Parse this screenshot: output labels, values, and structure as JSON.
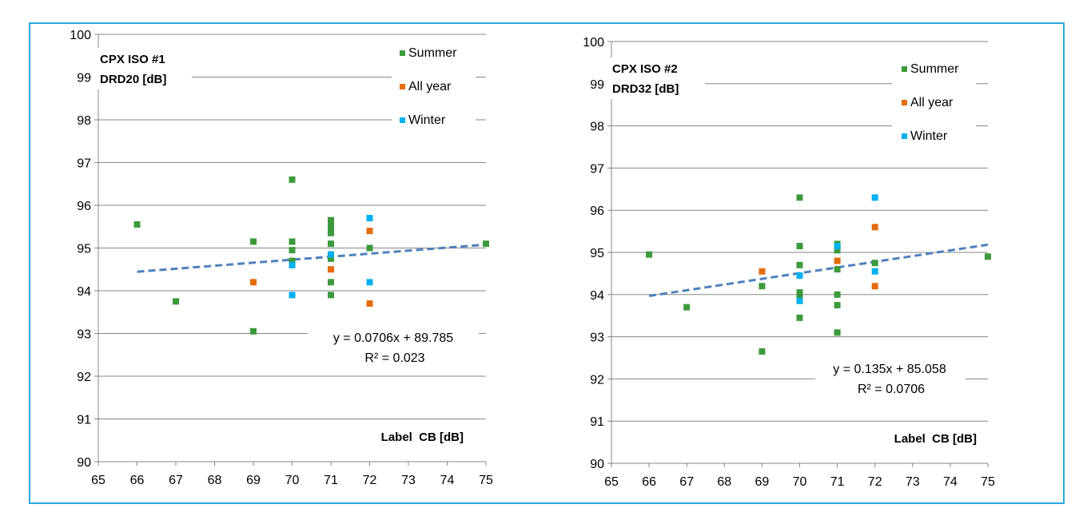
{
  "chart_data": [
    {
      "type": "scatter",
      "title_lines": [
        "CPX ISO #1",
        "DRD20 [dB]"
      ],
      "xlabel": "Label  CB [dB]",
      "ylabel": "",
      "xlim": [
        65,
        75
      ],
      "ylim": [
        90,
        100
      ],
      "xticks": [
        65,
        66,
        67,
        68,
        69,
        70,
        71,
        72,
        73,
        74,
        75
      ],
      "yticks": [
        90,
        91,
        92,
        93,
        94,
        95,
        96,
        97,
        98,
        99,
        100
      ],
      "grid": "horizontal",
      "legend_position": "top-right",
      "series": [
        {
          "name": "Summer",
          "color": "#3c9a3c",
          "points": [
            [
              66,
              95.55
            ],
            [
              67,
              93.75
            ],
            [
              69,
              95.15
            ],
            [
              69,
              93.05
            ],
            [
              70,
              96.6
            ],
            [
              70,
              95.15
            ],
            [
              70,
              94.95
            ],
            [
              70,
              94.7
            ],
            [
              71,
              95.65
            ],
            [
              71,
              95.55
            ],
            [
              71,
              95.45
            ],
            [
              71,
              95.35
            ],
            [
              71,
              95.1
            ],
            [
              71,
              94.75
            ],
            [
              71,
              94.2
            ],
            [
              71,
              93.9
            ],
            [
              72,
              95.0
            ],
            [
              75,
              95.1
            ]
          ]
        },
        {
          "name": "All year",
          "color": "#e46c0a",
          "points": [
            [
              69,
              94.2
            ],
            [
              71,
              94.5
            ],
            [
              72,
              95.4
            ],
            [
              72,
              93.7
            ]
          ]
        },
        {
          "name": "Winter",
          "color": "#00b0f0",
          "points": [
            [
              70,
              94.6
            ],
            [
              70,
              93.9
            ],
            [
              71,
              94.85
            ],
            [
              72,
              95.7
            ],
            [
              72,
              94.2
            ]
          ]
        }
      ],
      "trendline": {
        "slope": 0.0706,
        "intercept": 89.785,
        "x_range": [
          66,
          75
        ],
        "color": "#4f81bd",
        "style": "dashed",
        "equation_label": "y = 0.0706x + 89.785",
        "r2_label": "R² = 0.023"
      }
    },
    {
      "type": "scatter",
      "title_lines": [
        "CPX ISO #2",
        "DRD32 [dB]"
      ],
      "xlabel": "Label  CB [dB]",
      "ylabel": "",
      "xlim": [
        65,
        75
      ],
      "ylim": [
        90,
        100
      ],
      "xticks": [
        65,
        66,
        67,
        68,
        69,
        70,
        71,
        72,
        73,
        74,
        75
      ],
      "yticks": [
        90,
        91,
        92,
        93,
        94,
        95,
        96,
        97,
        98,
        99,
        100
      ],
      "grid": "horizontal",
      "legend_position": "top-right",
      "series": [
        {
          "name": "Summer",
          "color": "#3c9a3c",
          "points": [
            [
              66,
              94.95
            ],
            [
              67,
              93.7
            ],
            [
              69,
              94.2
            ],
            [
              69,
              92.65
            ],
            [
              70,
              96.3
            ],
            [
              70,
              95.15
            ],
            [
              70,
              94.7
            ],
            [
              70,
              94.05
            ],
            [
              70,
              93.95
            ],
            [
              70,
              93.45
            ],
            [
              71,
              95.2
            ],
            [
              71,
              95.05
            ],
            [
              71,
              94.6
            ],
            [
              71,
              94.0
            ],
            [
              71,
              93.75
            ],
            [
              71,
              93.1
            ],
            [
              72,
              94.75
            ],
            [
              75,
              94.9
            ]
          ]
        },
        {
          "name": "All year",
          "color": "#e46c0a",
          "points": [
            [
              69,
              94.55
            ],
            [
              71,
              94.8
            ],
            [
              72,
              95.6
            ],
            [
              72,
              94.2
            ]
          ]
        },
        {
          "name": "Winter",
          "color": "#00b0f0",
          "points": [
            [
              70,
              94.45
            ],
            [
              70,
              93.85
            ],
            [
              71,
              95.15
            ],
            [
              72,
              96.3
            ],
            [
              72,
              94.55
            ]
          ]
        }
      ],
      "trendline": {
        "slope": 0.135,
        "intercept": 85.058,
        "x_range": [
          66,
          75
        ],
        "color": "#4f81bd",
        "style": "dashed",
        "equation_label": "y = 0.135x + 85.058",
        "r2_label": "R² = 0.0706"
      }
    }
  ],
  "frame": {
    "border_color": "#29a9e1"
  }
}
